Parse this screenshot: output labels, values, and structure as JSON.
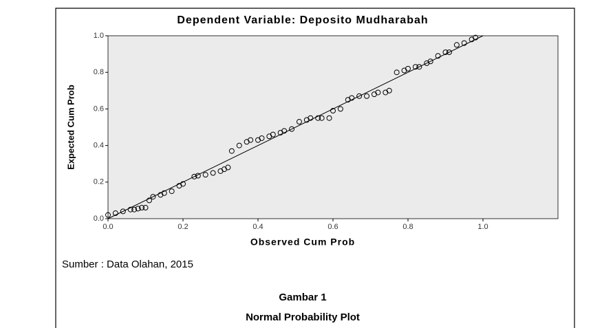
{
  "chart_data": {
    "type": "scatter",
    "title": "Dependent Variable: Deposito Mudharabah",
    "xlabel": "Observed Cum Prob",
    "ylabel": "Expected Cum Prob",
    "x": [
      0.0,
      0.02,
      0.04,
      0.06,
      0.07,
      0.08,
      0.09,
      0.1,
      0.11,
      0.12,
      0.14,
      0.15,
      0.17,
      0.19,
      0.2,
      0.23,
      0.24,
      0.26,
      0.28,
      0.3,
      0.31,
      0.32,
      0.33,
      0.35,
      0.37,
      0.38,
      0.4,
      0.41,
      0.43,
      0.44,
      0.46,
      0.47,
      0.49,
      0.51,
      0.53,
      0.54,
      0.56,
      0.57,
      0.59,
      0.6,
      0.62,
      0.64,
      0.65,
      0.67,
      0.69,
      0.71,
      0.72,
      0.74,
      0.75,
      0.77,
      0.79,
      0.8,
      0.82,
      0.83,
      0.85,
      0.86,
      0.88,
      0.9,
      0.91,
      0.93,
      0.95,
      0.97,
      0.98
    ],
    "series": [
      {
        "color": "#000000",
        "values": [
          0.02,
          0.03,
          0.04,
          0.05,
          0.05,
          0.055,
          0.06,
          0.06,
          0.1,
          0.12,
          0.13,
          0.14,
          0.15,
          0.18,
          0.19,
          0.23,
          0.235,
          0.24,
          0.25,
          0.26,
          0.27,
          0.28,
          0.37,
          0.4,
          0.42,
          0.43,
          0.43,
          0.44,
          0.45,
          0.46,
          0.47,
          0.48,
          0.49,
          0.53,
          0.54,
          0.55,
          0.55,
          0.55,
          0.55,
          0.59,
          0.6,
          0.65,
          0.66,
          0.67,
          0.67,
          0.68,
          0.69,
          0.69,
          0.7,
          0.8,
          0.81,
          0.82,
          0.83,
          0.83,
          0.85,
          0.86,
          0.89,
          0.91,
          0.91,
          0.95,
          0.96,
          0.98,
          0.99
        ]
      }
    ],
    "reference_line": {
      "x": [
        0,
        1
      ],
      "y": [
        0,
        1
      ]
    },
    "xlim": [
      0,
      1.2
    ],
    "ylim": [
      0,
      1
    ],
    "xticks": [
      {
        "value": 0,
        "label": "0.0"
      },
      {
        "value": 0.2,
        "label": "0.2"
      },
      {
        "value": 0.4,
        "label": "0.4"
      },
      {
        "value": 0.6,
        "label": "0.6"
      },
      {
        "value": 0.8,
        "label": "0.8"
      },
      {
        "value": 1,
        "label": "1.0"
      }
    ],
    "yticks": [
      {
        "value": 0,
        "label": "0.0"
      },
      {
        "value": 0.2,
        "label": "0.2"
      },
      {
        "value": 0.4,
        "label": "0.4"
      },
      {
        "value": 0.6,
        "label": "0.6"
      },
      {
        "value": 0.8,
        "label": "0.8"
      },
      {
        "value": 1,
        "label": "1.0"
      }
    ],
    "background": "#ebebeb"
  },
  "source": "Sumber : Data Olahan, 2015",
  "figure_label": "Gambar 1",
  "figure_title": "Normal Probability Plot"
}
